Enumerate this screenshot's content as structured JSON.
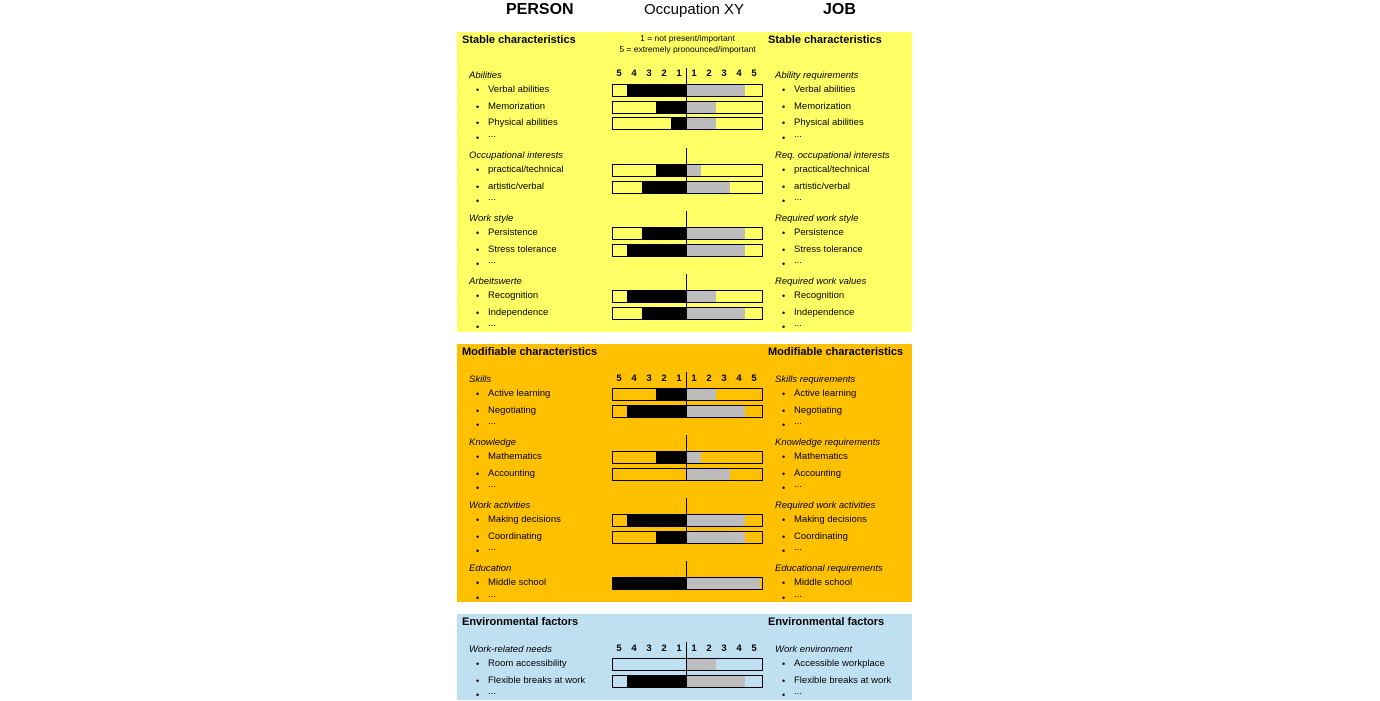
{
  "headers": {
    "person": "PERSON",
    "occupation": "Occupation XY",
    "job": "JOB"
  },
  "scale_note": [
    "1 = not present/important",
    "5 = extremely pronounced/important"
  ],
  "scale_labels": [
    "5",
    "4",
    "3",
    "2",
    "1",
    "1",
    "2",
    "3",
    "4",
    "5"
  ],
  "more": "...",
  "colors": {
    "stable": "#ffff66",
    "modifiable": "#ffc000",
    "environmental": "#bfe0f0",
    "person_bar": "#000000",
    "job_bar": "#bdbdbd"
  },
  "sections": [
    {
      "id": "stable",
      "person_title": "Stable characteristics",
      "job_title": "Stable characteristics",
      "groups": [
        {
          "person_title": "Abilities",
          "job_title": "Ability requirements",
          "items": [
            {
              "person": "Verbal abilities",
              "job": "Verbal abilities",
              "person_level": 4,
              "job_level": 4
            },
            {
              "person": "Memorization",
              "job": "Memorization",
              "person_level": 2,
              "job_level": 2
            },
            {
              "person": "Physical abilities",
              "job": "Physical abilities",
              "person_level": 1,
              "job_level": 2
            }
          ]
        },
        {
          "person_title": "Occupational interests",
          "job_title": "Req. occupational interests",
          "items": [
            {
              "person": "practical/technical",
              "job": "practical/technical",
              "person_level": 2,
              "job_level": 1
            },
            {
              "person": "artistic/verbal",
              "job": "artistic/verbal",
              "person_level": 3,
              "job_level": 3
            }
          ]
        },
        {
          "person_title": "Work style",
          "job_title": "Required work style",
          "items": [
            {
              "person": "Persistence",
              "job": "Persistence",
              "person_level": 3,
              "job_level": 4
            },
            {
              "person": "Stress tolerance",
              "job": "Stress tolerance",
              "person_level": 4,
              "job_level": 4
            }
          ]
        },
        {
          "person_title": "Arbeitswerte",
          "job_title": "Required work values",
          "items": [
            {
              "person": "Recognition",
              "job": "Recognition",
              "person_level": 4,
              "job_level": 2
            },
            {
              "person": "Independence",
              "job": "Independence",
              "person_level": 3,
              "job_level": 4
            }
          ]
        }
      ]
    },
    {
      "id": "modifiable",
      "person_title": "Modifiable characteristics",
      "job_title": "Modifiable characteristics",
      "groups": [
        {
          "person_title": "Skills",
          "job_title": "Skills requirements",
          "items": [
            {
              "person": "Active learning",
              "job": "Active learning",
              "person_level": 2,
              "job_level": 2
            },
            {
              "person": "Negotiating",
              "job": "Negotiating",
              "person_level": 4,
              "job_level": 4
            }
          ]
        },
        {
          "person_title": "Knowledge",
          "job_title": "Knowledge requirements",
          "items": [
            {
              "person": "Mathematics",
              "job": "Mathematics",
              "person_level": 2,
              "job_level": 1
            },
            {
              "person": "Accounting",
              "job": "Accounting",
              "person_level": 0,
              "job_level": 3
            }
          ]
        },
        {
          "person_title": "Work activities",
          "job_title": "Required work activities",
          "items": [
            {
              "person": "Making decisions",
              "job": "Making decisions",
              "person_level": 4,
              "job_level": 4
            },
            {
              "person": "Coordinating",
              "job": "Coordinating",
              "person_level": 2,
              "job_level": 4
            }
          ]
        },
        {
          "person_title": "Education",
          "job_title": "Educational requirements",
          "items": [
            {
              "person": "Middle school",
              "job": "Middle school",
              "person_level": 5,
              "job_level": 5
            }
          ]
        }
      ]
    },
    {
      "id": "environmental",
      "person_title": "Environmental factors",
      "job_title": "Environmental factors",
      "groups": [
        {
          "person_title": "Work-related needs",
          "job_title": "Work environment",
          "items": [
            {
              "person": "Room accessibility",
              "job": "Accessible workplace",
              "person_level": 0,
              "job_level": 2
            },
            {
              "person": "Flexible breaks at work",
              "job": "Flexible breaks at work",
              "person_level": 4,
              "job_level": 4
            }
          ]
        }
      ]
    }
  ]
}
